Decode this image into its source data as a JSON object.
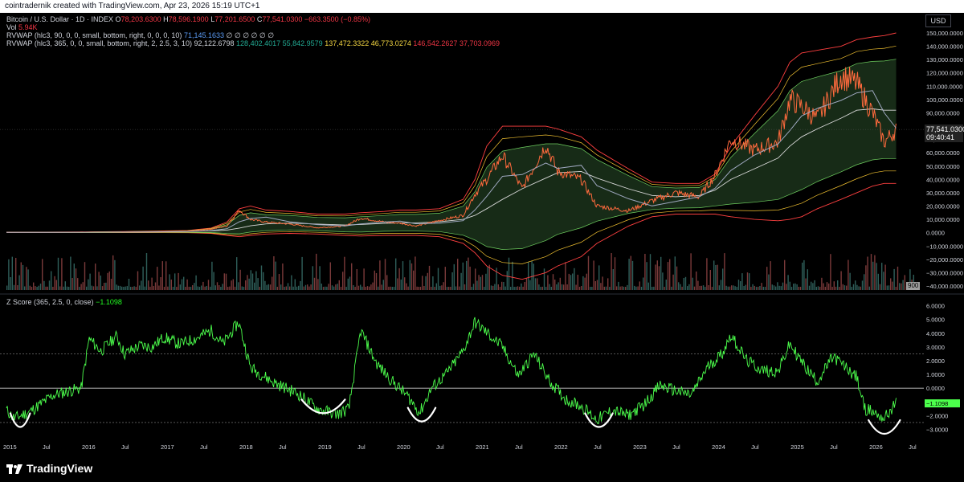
{
  "header": {
    "credit": "cointradernik created with TradingView.com, Apr 23, 2026 15:19 UTC+1"
  },
  "legend": {
    "symbol": "Bitcoin / U.S. Dollar · 1D · INDEX",
    "ohlc": {
      "o_label": "O",
      "o": "78,203.6300",
      "h_label": "H",
      "h": "78,596.1900",
      "l_label": "L",
      "l": "77,201.6500",
      "c_label": "C",
      "c": "77,541.0300",
      "change": "−663.3500 (−0.85%)"
    },
    "vol_label": "Vol",
    "vol": "5.94K",
    "rvwap1": {
      "label": "RVWAP (hlc3, 90, 0, 0, small, bottom, right, 0, 0, 0, 10)",
      "value": "71,145.1633",
      "empties": "∅ ∅ ∅ ∅ ∅ ∅"
    },
    "rvwap2": {
      "label": "RVWAP (hlc3, 365, 0, 0, small, bottom, right, 2, 2.5, 3, 10)",
      "v1": "92,122.6798",
      "v2": "128,402.4017",
      "v3": "55,842.9579",
      "v4": "137,472.3322",
      "v5": "46,773.0274",
      "v6": "146,542.2627",
      "v7": "37,703.0969"
    }
  },
  "axis_currency": "USD",
  "price_tag": {
    "price": "77,541.0300",
    "countdown": "09:40:41"
  },
  "vol_tag": "900",
  "zscore_legend": {
    "label": "Z Score (365, 2.5, 0, close)",
    "value": "−1.1098"
  },
  "logo": "TradingView",
  "colors": {
    "price_up": "#ff6a3d",
    "rvwap": "#9fa8c0",
    "band_fill": "#1f3a1f",
    "zscore": "#4cff4c",
    "annotation": "#ffffff",
    "band_outer": "#ff4040",
    "band_mid": "#f0c030",
    "band_inner": "#6fd060"
  },
  "chart_data": [
    {
      "type": "line",
      "title": "Bitcoin / U.S. Dollar · 1D · INDEX",
      "y_ticks": [
        "150,000.0000",
        "140,000.0000",
        "130,000.0000",
        "120,000.0000",
        "110,000.0000",
        "100,000.0000",
        "90,000.0000",
        "80,000.0000",
        "70,000.0000",
        "60,000.0000",
        "50,000.0000",
        "40,000.0000",
        "30,000.0000",
        "20,000.0000",
        "10,000.0000",
        "0.0000",
        "−10,000.0000",
        "−20,000.0000",
        "−30,000.0000",
        "−40,000.0000"
      ],
      "ylim": [
        -40000,
        150000
      ],
      "x": [
        2015.0,
        2015.5,
        2016.0,
        2016.5,
        2017.0,
        2017.3,
        2017.6,
        2017.8,
        2017.96,
        2018.1,
        2018.3,
        2018.6,
        2018.95,
        2019.3,
        2019.5,
        2019.8,
        2020.0,
        2020.2,
        2020.5,
        2020.8,
        2020.95,
        2021.1,
        2021.3,
        2021.55,
        2021.85,
        2022.0,
        2022.3,
        2022.5,
        2022.9,
        2023.2,
        2023.5,
        2023.8,
        2024.0,
        2024.2,
        2024.5,
        2024.8,
        2024.95,
        2025.1,
        2025.3,
        2025.6,
        2025.8,
        2026.0,
        2026.15,
        2026.3
      ],
      "series": [
        {
          "values": [
            300,
            260,
            430,
            680,
            1000,
            1200,
            2700,
            5000,
            17000,
            10000,
            8000,
            6500,
            3700,
            5000,
            11000,
            8000,
            7200,
            5000,
            9200,
            13000,
            29000,
            40000,
            58000,
            33000,
            66000,
            46000,
            40000,
            20000,
            16500,
            24000,
            30000,
            27000,
            43000,
            70000,
            62000,
            68000,
            100000,
            95000,
            85000,
            118000,
            112000,
            90000,
            68000,
            77500
          ]
        }
      ],
      "bands": {
        "center": [
          300,
          280,
          350,
          500,
          700,
          900,
          1400,
          2000,
          3500,
          5200,
          6600,
          7200,
          6500,
          5800,
          6200,
          7000,
          7400,
          7400,
          8200,
          10000,
          13000,
          18000,
          25000,
          33000,
          41000,
          45000,
          46000,
          41000,
          33000,
          28000,
          27000,
          28000,
          32000,
          40000,
          48000,
          56000,
          65000,
          72000,
          78000,
          86000,
          92000,
          93000,
          92000,
          92000
        ],
        "upper": [
          400,
          400,
          600,
          900,
          1300,
          1700,
          3500,
          8000,
          18000,
          20000,
          17000,
          16000,
          14000,
          14000,
          15000,
          16000,
          17000,
          17000,
          18000,
          25000,
          40000,
          65000,
          80000,
          80000,
          80000,
          78000,
          72000,
          62000,
          48000,
          38000,
          37000,
          37000,
          44000,
          65000,
          88000,
          110000,
          128000,
          135000,
          137000,
          140000,
          145000,
          147000,
          148000,
          150000
        ],
        "lower": [
          200,
          150,
          100,
          100,
          100,
          0,
          -500,
          -2000,
          -3000,
          -2000,
          -1000,
          -500,
          -1000,
          -2000,
          -2500,
          -2000,
          -2000,
          -2000,
          -3000,
          -8000,
          -15000,
          -25000,
          -32000,
          -35000,
          -30000,
          -25000,
          -18000,
          -8000,
          5000,
          12000,
          14000,
          14000,
          14000,
          12000,
          10000,
          9000,
          10000,
          12000,
          18000,
          25000,
          30000,
          35000,
          37000,
          37000
        ]
      }
    },
    {
      "type": "line",
      "title": "Z Score (365, 2.5, 0, close)",
      "y_ticks": [
        "6.0000",
        "5.0000",
        "4.0000",
        "3.0000",
        "2.0000",
        "1.0000",
        "0.0000",
        "−1.0000",
        "−2.0000",
        "−3.0000"
      ],
      "ylim": [
        -3.5,
        6.5
      ],
      "reference_lines": [
        2.5,
        0,
        -2.5
      ],
      "x": [
        2015.0,
        2015.1,
        2015.3,
        2015.6,
        2015.8,
        2015.95,
        2016.05,
        2016.2,
        2016.4,
        2016.5,
        2016.7,
        2016.85,
        2017.0,
        2017.2,
        2017.4,
        2017.6,
        2017.75,
        2017.95,
        2018.1,
        2018.4,
        2018.7,
        2018.95,
        2019.2,
        2019.35,
        2019.5,
        2019.7,
        2019.9,
        2020.1,
        2020.25,
        2020.4,
        2020.6,
        2020.8,
        2020.95,
        2021.05,
        2021.3,
        2021.5,
        2021.7,
        2021.9,
        2022.1,
        2022.3,
        2022.5,
        2022.7,
        2022.9,
        2023.1,
        2023.3,
        2023.5,
        2023.7,
        2023.9,
        2024.1,
        2024.2,
        2024.4,
        2024.6,
        2024.8,
        2024.95,
        2025.15,
        2025.3,
        2025.5,
        2025.7,
        2025.8,
        2025.9,
        2026.0,
        2026.15,
        2026.3
      ],
      "series": [
        {
          "values": [
            -1.6,
            -2.2,
            -1.7,
            -0.5,
            -0.2,
            0.0,
            3.6,
            2.7,
            3.8,
            2.5,
            3.1,
            3.0,
            3.7,
            3.2,
            3.6,
            4.2,
            3.2,
            4.8,
            1.5,
            0.4,
            -0.4,
            -1.5,
            -1.9,
            -1.5,
            4.2,
            1.8,
            0.5,
            -0.6,
            -1.8,
            0.0,
            1.1,
            2.7,
            4.8,
            4.3,
            3.0,
            0.9,
            2.5,
            0.5,
            -0.8,
            -1.3,
            -2.3,
            -1.6,
            -2.0,
            -1.2,
            0.2,
            -0.2,
            -0.5,
            1.5,
            2.6,
            3.9,
            2.0,
            1.3,
            1.2,
            3.2,
            1.5,
            0.5,
            2.3,
            1.3,
            0.8,
            -1.5,
            -1.7,
            -2.2,
            -1.1
          ]
        }
      ],
      "annotations": [
        {
          "type": "curve",
          "x": [
            2015.05,
            2015.3
          ],
          "y_min": -3.0
        },
        {
          "type": "curve",
          "x": [
            2018.75,
            2019.3
          ],
          "y_min": -2.0
        },
        {
          "type": "curve",
          "x": [
            2020.1,
            2020.45
          ],
          "y_min": -2.6
        },
        {
          "type": "curve",
          "x": [
            2022.35,
            2022.7
          ],
          "y_min": -3.0
        },
        {
          "type": "curve",
          "x": [
            2025.95,
            2026.35
          ],
          "y_min": -3.5
        }
      ]
    }
  ],
  "x_ticks": [
    {
      "x": 2015.0,
      "label": "2015"
    },
    {
      "x": 2015.5,
      "label": "Jul"
    },
    {
      "x": 2016.0,
      "label": "2016"
    },
    {
      "x": 2016.5,
      "label": "Jul"
    },
    {
      "x": 2017.0,
      "label": "2017"
    },
    {
      "x": 2017.5,
      "label": "Jul"
    },
    {
      "x": 2018.0,
      "label": "2018"
    },
    {
      "x": 2018.5,
      "label": "Jul"
    },
    {
      "x": 2019.0,
      "label": "2019"
    },
    {
      "x": 2019.5,
      "label": "Jul"
    },
    {
      "x": 2020.0,
      "label": "2020"
    },
    {
      "x": 2020.5,
      "label": "Jul"
    },
    {
      "x": 2021.0,
      "label": "2021"
    },
    {
      "x": 2021.5,
      "label": "Jul"
    },
    {
      "x": 2022.0,
      "label": "2022"
    },
    {
      "x": 2022.5,
      "label": "Jul"
    },
    {
      "x": 2023.0,
      "label": "2023"
    },
    {
      "x": 2023.5,
      "label": "Jul"
    },
    {
      "x": 2024.0,
      "label": "2024"
    },
    {
      "x": 2024.5,
      "label": "Jul"
    },
    {
      "x": 2025.0,
      "label": "2025"
    },
    {
      "x": 2025.5,
      "label": "Jul"
    },
    {
      "x": 2026.0,
      "label": "2026"
    },
    {
      "x": 2026.5,
      "label": "Jul"
    }
  ]
}
